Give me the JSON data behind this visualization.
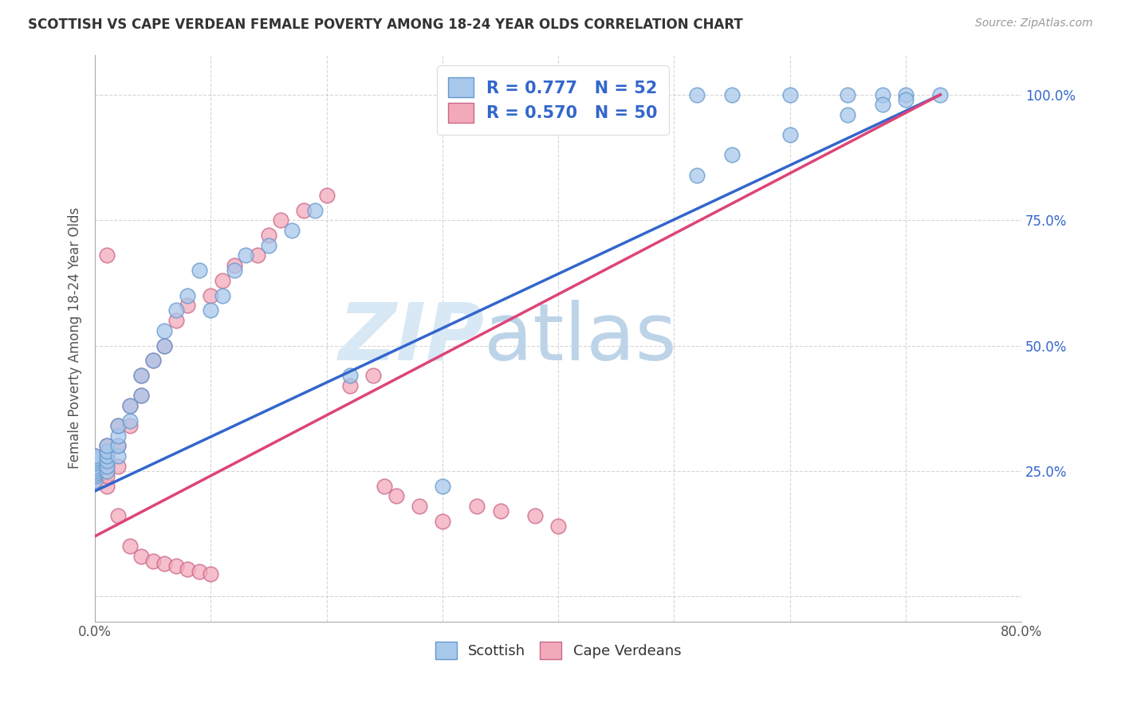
{
  "title": "SCOTTISH VS CAPE VERDEAN FEMALE POVERTY AMONG 18-24 YEAR OLDS CORRELATION CHART",
  "source": "Source: ZipAtlas.com",
  "ylabel": "Female Poverty Among 18-24 Year Olds",
  "xlim": [
    0.0,
    0.8
  ],
  "ylim": [
    -0.05,
    1.08
  ],
  "scottish_color": "#A8C8EC",
  "scottish_edge_color": "#6699CC",
  "capeverdean_color": "#F2AABB",
  "capeverdean_edge_color": "#CC6688",
  "scottish_line_color": "#3366CC",
  "capeverdean_line_color": "#DD4477",
  "watermark_color": "#D8E8F5",
  "watermark_zip": "ZIP",
  "watermark_atlas": "atlas",
  "scottish_x": [
    0.0,
    0.0,
    0.0,
    0.0,
    0.0,
    0.0,
    0.0,
    0.0,
    0.0,
    0.0,
    0.01,
    0.01,
    0.01,
    0.01,
    0.01,
    0.01,
    0.02,
    0.02,
    0.02,
    0.02,
    0.03,
    0.03,
    0.04,
    0.04,
    0.05,
    0.06,
    0.06,
    0.07,
    0.08,
    0.09,
    0.1,
    0.11,
    0.12,
    0.13,
    0.15,
    0.17,
    0.19,
    0.22,
    0.3,
    0.52,
    0.55,
    0.6,
    0.65,
    0.68,
    0.7,
    0.73,
    0.52,
    0.55,
    0.6,
    0.65,
    0.68,
    0.7
  ],
  "scottish_y": [
    0.23,
    0.24,
    0.245,
    0.25,
    0.255,
    0.26,
    0.265,
    0.27,
    0.275,
    0.28,
    0.25,
    0.26,
    0.27,
    0.28,
    0.29,
    0.3,
    0.28,
    0.3,
    0.32,
    0.34,
    0.35,
    0.38,
    0.4,
    0.44,
    0.47,
    0.5,
    0.53,
    0.57,
    0.6,
    0.65,
    0.57,
    0.6,
    0.65,
    0.68,
    0.7,
    0.73,
    0.77,
    0.44,
    0.22,
    1.0,
    1.0,
    1.0,
    1.0,
    1.0,
    1.0,
    1.0,
    0.84,
    0.88,
    0.92,
    0.96,
    0.98,
    0.99
  ],
  "capeverdean_x": [
    0.0,
    0.0,
    0.0,
    0.0,
    0.0,
    0.0,
    0.01,
    0.01,
    0.01,
    0.01,
    0.01,
    0.02,
    0.02,
    0.02,
    0.03,
    0.03,
    0.04,
    0.04,
    0.05,
    0.06,
    0.07,
    0.08,
    0.1,
    0.11,
    0.12,
    0.14,
    0.15,
    0.16,
    0.18,
    0.2,
    0.22,
    0.24,
    0.25,
    0.26,
    0.28,
    0.3,
    0.33,
    0.35,
    0.38,
    0.4,
    0.01,
    0.02,
    0.03,
    0.04,
    0.05,
    0.06,
    0.07,
    0.08,
    0.09,
    0.1
  ],
  "capeverdean_y": [
    0.23,
    0.24,
    0.25,
    0.26,
    0.27,
    0.28,
    0.22,
    0.24,
    0.26,
    0.28,
    0.3,
    0.26,
    0.3,
    0.34,
    0.34,
    0.38,
    0.4,
    0.44,
    0.47,
    0.5,
    0.55,
    0.58,
    0.6,
    0.63,
    0.66,
    0.68,
    0.72,
    0.75,
    0.77,
    0.8,
    0.42,
    0.44,
    0.22,
    0.2,
    0.18,
    0.15,
    0.18,
    0.17,
    0.16,
    0.14,
    0.68,
    0.16,
    0.1,
    0.08,
    0.07,
    0.065,
    0.06,
    0.055,
    0.05,
    0.045
  ],
  "trend_scottish_x0": 0.0,
  "trend_scottish_y0": 0.21,
  "trend_scottish_x1": 0.73,
  "trend_scottish_y1": 1.0,
  "trend_cape_x0": 0.0,
  "trend_cape_y0": 0.12,
  "trend_cape_x1": 0.73,
  "trend_cape_y1": 1.0
}
